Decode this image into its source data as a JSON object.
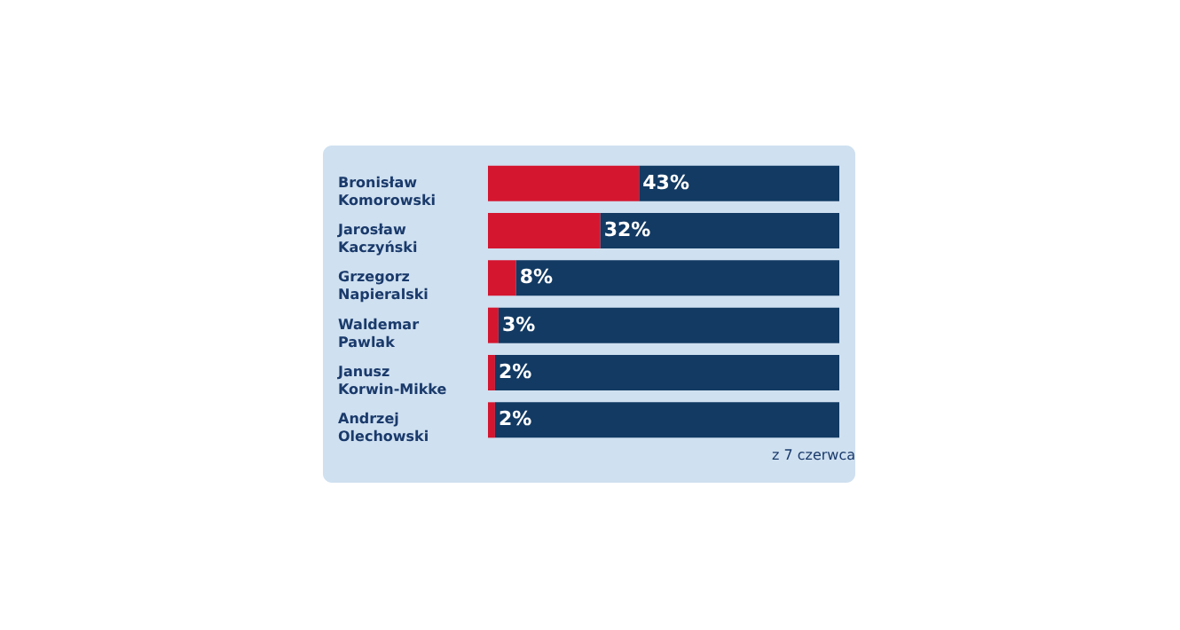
{
  "chart_data": {
    "type": "bar",
    "orientation": "horizontal",
    "stacked": true,
    "categories": [
      "Bronisław Komorowski",
      "Jarosław Kaczyński",
      "Grzegorz Napieralski",
      "Waldemar Pawlak",
      "Janusz Korwin-Mikke",
      "Andrzej Olechowski"
    ],
    "series": [
      {
        "color": "#d4162f",
        "values": [
          43,
          32,
          8,
          3,
          2,
          2
        ],
        "value_labels": [
          "43%",
          "32%",
          "8%",
          "3%",
          "2%",
          "2%"
        ]
      },
      {
        "color": "#123a63",
        "values": [
          57,
          68,
          92,
          97,
          98,
          98
        ]
      }
    ],
    "annotations": [
      "z 7 czerwca"
    ]
  }
}
